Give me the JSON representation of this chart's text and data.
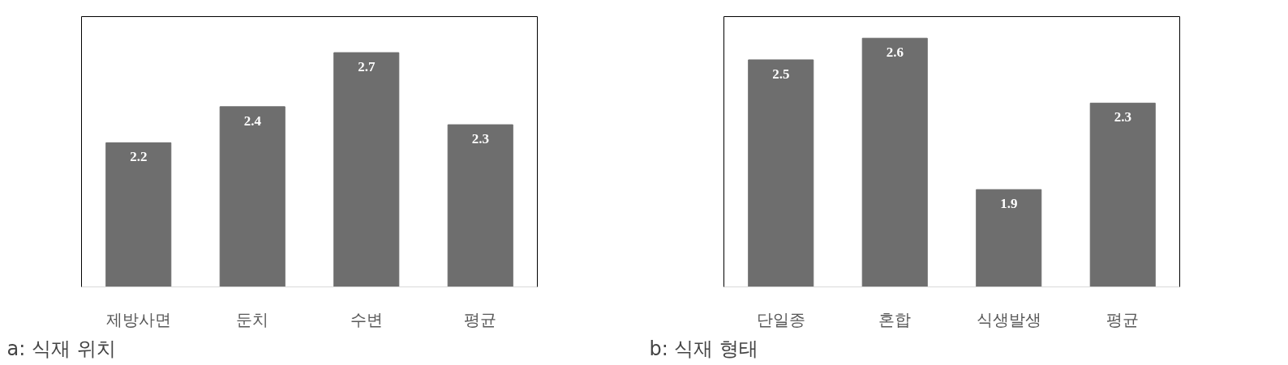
{
  "chart_data": [
    {
      "type": "bar",
      "title": "a: 식재 위치",
      "categories": [
        "제방사면",
        "둔치",
        "수변",
        "평균"
      ],
      "values": [
        2.2,
        2.4,
        2.7,
        2.3
      ],
      "color": "#6e6e6e",
      "ylim": [
        1.4,
        2.9
      ],
      "data_labels": true,
      "tick_labels": "x",
      "grid": false
    },
    {
      "type": "bar",
      "title": "b: 식재 형태",
      "categories": [
        "단일종",
        "혼합",
        "식생발생",
        "평균"
      ],
      "values": [
        2.5,
        2.6,
        1.9,
        2.3
      ],
      "color": "#6e6e6e",
      "ylim": [
        1.45,
        2.7
      ],
      "data_labels": true,
      "tick_labels": "x",
      "grid": false
    }
  ]
}
